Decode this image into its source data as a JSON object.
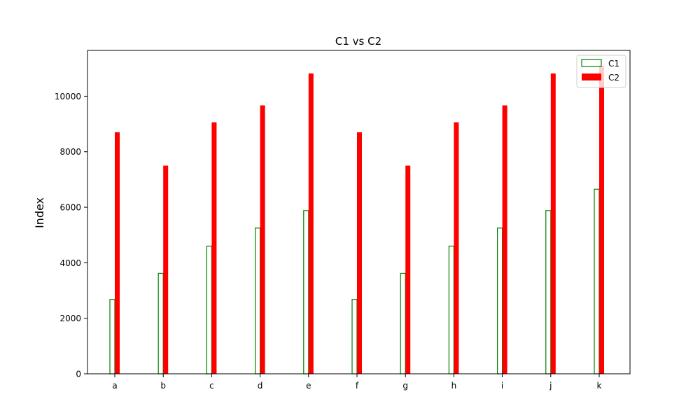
{
  "chart_data": {
    "type": "bar",
    "title": "C1 vs C2",
    "xlabel": "",
    "ylabel": "Index",
    "categories": [
      "a",
      "b",
      "c",
      "d",
      "e",
      "f",
      "g",
      "h",
      "i",
      "j",
      "k"
    ],
    "series": [
      {
        "name": "C1",
        "style": "outline",
        "color": "#008000",
        "values": [
          2680,
          3620,
          4600,
          5250,
          5880,
          2680,
          3620,
          4600,
          5250,
          5880,
          6650
        ]
      },
      {
        "name": "C2",
        "style": "filled",
        "color": "#ff0000",
        "values": [
          8700,
          7500,
          9060,
          9670,
          10820,
          8700,
          7500,
          9060,
          9670,
          10820,
          11100
        ]
      }
    ],
    "ylim": [
      0,
      11650
    ],
    "yticks": [
      0,
      2000,
      4000,
      6000,
      8000,
      10000
    ],
    "ytick_labels": [
      "0",
      "2000",
      "4000",
      "6000",
      "8000",
      "10000"
    ],
    "grid": false,
    "legend_position": "top-right"
  }
}
